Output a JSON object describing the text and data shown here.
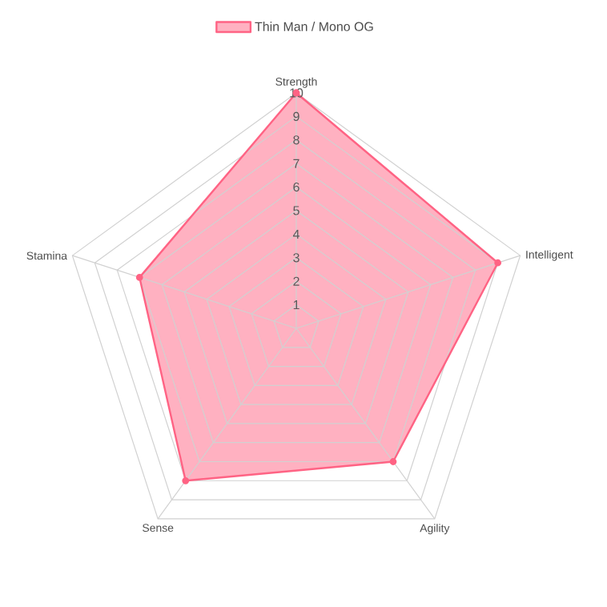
{
  "chart_data": {
    "type": "radar",
    "categories": [
      "Strength",
      "Intelligent",
      "Agility",
      "Sense",
      "Stamina"
    ],
    "series": [
      {
        "name": "Thin Man / Mono OG",
        "color": "#ff6384",
        "values": [
          10,
          9,
          7,
          8,
          7
        ]
      }
    ],
    "ylim": [
      0,
      10
    ],
    "yticks": [
      1,
      2,
      3,
      4,
      5,
      6,
      7,
      8,
      9,
      10
    ],
    "grid": true,
    "legend": "top",
    "marker": "circle",
    "line_style": "solid"
  }
}
